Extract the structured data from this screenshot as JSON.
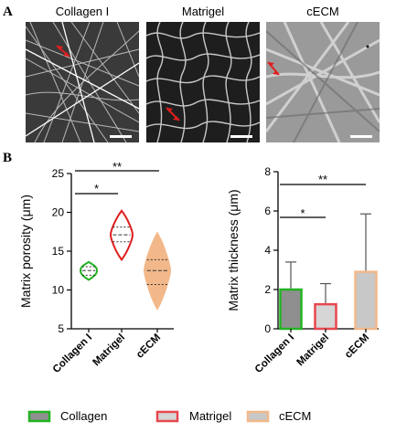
{
  "panels": {
    "a": {
      "letter": "A",
      "images": [
        "Collagen I",
        "Matrigel",
        "cECM"
      ]
    },
    "b": {
      "letter": "B"
    }
  },
  "legend": [
    {
      "label": "Collagen",
      "fill": "#8f8f8f",
      "stroke": "#22b322"
    },
    {
      "label": "Matrigel",
      "fill": "#d6d6d6",
      "stroke": "#e8474f"
    },
    {
      "label": "cECM",
      "fill": "#c8c8c8",
      "stroke": "#f2b88a"
    }
  ],
  "colors": {
    "collagen": "#22b322",
    "matrigel": "#e01e1e",
    "cecm_fill": "#f2b88a",
    "collagen_violin_fill": "#ffffff",
    "matrigel_violin_fill": "#ffffff"
  },
  "chart_data": [
    {
      "type": "violin",
      "categories": [
        "Collagen I",
        "Matrigel",
        "cECM"
      ],
      "ylabel": "Matrix porosity (μm)",
      "ylim": [
        5,
        25
      ],
      "yticks": [
        5,
        10,
        15,
        20,
        25
      ],
      "series": [
        {
          "values_summary": {
            "min": 11.3,
            "q1": 11.9,
            "median": 12.5,
            "q3": 13.0,
            "max": 13.6
          }
        },
        {
          "values_summary": {
            "min": 13.9,
            "q1": 16.2,
            "median": 17.1,
            "q3": 18.1,
            "max": 20.2
          }
        },
        {
          "values_summary": {
            "min": 7.6,
            "q1": 10.7,
            "median": 12.5,
            "q3": 13.9,
            "max": 17.3
          }
        }
      ],
      "significance": [
        {
          "pair": [
            "Collagen I",
            "Matrigel"
          ],
          "label": "*"
        },
        {
          "pair": [
            "Collagen I",
            "cECM"
          ],
          "label": "**"
        }
      ]
    },
    {
      "type": "bar",
      "categories": [
        "Collagen I",
        "Matrigel",
        "cECM"
      ],
      "ylabel": "Matrix thickness (μm)",
      "ylim": [
        0,
        8
      ],
      "yticks": [
        0,
        2,
        4,
        6,
        8
      ],
      "values": [
        2.0,
        1.25,
        2.9
      ],
      "error_upper": [
        3.4,
        2.3,
        5.85
      ],
      "significance": [
        {
          "pair": [
            "Collagen I",
            "Matrigel"
          ],
          "label": "*"
        },
        {
          "pair": [
            "Collagen I",
            "cECM"
          ],
          "label": "**"
        }
      ]
    }
  ]
}
